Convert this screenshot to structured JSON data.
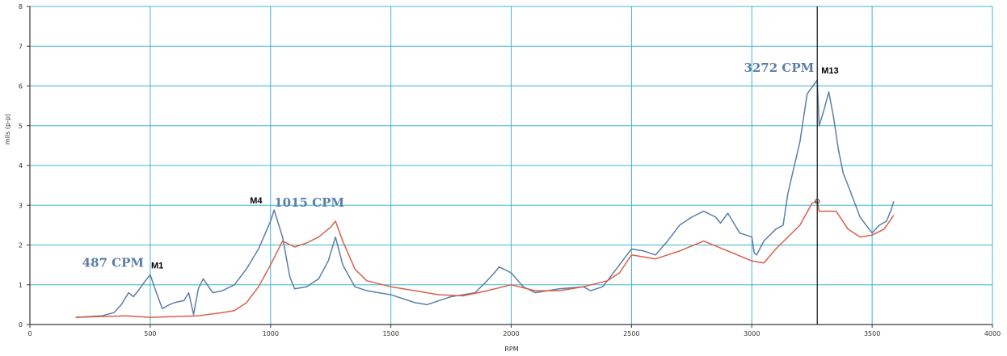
{
  "chart_data": {
    "type": "line",
    "xlabel": "RPM",
    "ylabel": "mils (p-p)",
    "xlim": [
      0,
      4000
    ],
    "ylim": [
      0,
      8
    ],
    "x_ticks": [
      "0",
      "500",
      "1000",
      "1500",
      "2000",
      "2500",
      "3000",
      "3500",
      "4000"
    ],
    "y_ticks": [
      "0",
      "1",
      "2",
      "3",
      "4",
      "5",
      "6",
      "7",
      "8"
    ],
    "grid": true,
    "series": [
      {
        "color": "#5b7ea8",
        "x": [
          190,
          300,
          350,
          380,
          410,
          430,
          450,
          480,
          500,
          520,
          550,
          580,
          600,
          640,
          660,
          680,
          700,
          720,
          760,
          800,
          850,
          900,
          950,
          1000,
          1015,
          1050,
          1080,
          1100,
          1150,
          1200,
          1240,
          1270,
          1300,
          1350,
          1400,
          1500,
          1600,
          1650,
          1700,
          1750,
          1800,
          1850,
          1900,
          1930,
          1950,
          2000,
          2050,
          2100,
          2200,
          2300,
          2330,
          2380,
          2400,
          2450,
          2500,
          2550,
          2600,
          2650,
          2700,
          2750,
          2800,
          2850,
          2870,
          2900,
          2950,
          3000,
          3010,
          3020,
          3050,
          3100,
          3130,
          3150,
          3200,
          3230,
          3260,
          3272,
          3280,
          3300,
          3320,
          3340,
          3360,
          3380,
          3400,
          3450,
          3500,
          3530,
          3560,
          3580,
          3590
        ],
        "y": [
          0.18,
          0.22,
          0.3,
          0.5,
          0.8,
          0.7,
          0.85,
          1.1,
          1.25,
          0.9,
          0.4,
          0.5,
          0.55,
          0.6,
          0.8,
          0.25,
          0.9,
          1.15,
          0.8,
          0.85,
          1.0,
          1.4,
          1.9,
          2.6,
          2.88,
          2.2,
          1.2,
          0.9,
          0.95,
          1.15,
          1.6,
          2.2,
          1.5,
          0.95,
          0.85,
          0.75,
          0.55,
          0.5,
          0.6,
          0.7,
          0.75,
          0.8,
          1.1,
          1.3,
          1.45,
          1.3,
          0.95,
          0.8,
          0.9,
          0.95,
          0.85,
          0.95,
          1.1,
          1.5,
          1.9,
          1.85,
          1.75,
          2.1,
          2.5,
          2.7,
          2.85,
          2.7,
          2.55,
          2.8,
          2.3,
          2.2,
          1.8,
          1.75,
          2.1,
          2.4,
          2.5,
          3.3,
          4.6,
          5.8,
          6.05,
          6.15,
          5.0,
          5.4,
          5.85,
          5.2,
          4.4,
          3.8,
          3.5,
          2.7,
          2.3,
          2.5,
          2.6,
          2.9,
          3.1
        ]
      },
      {
        "color": "#d9604a",
        "x": [
          190,
          300,
          400,
          500,
          600,
          700,
          800,
          850,
          900,
          950,
          1000,
          1050,
          1100,
          1150,
          1200,
          1250,
          1270,
          1300,
          1350,
          1400,
          1500,
          1600,
          1700,
          1800,
          1900,
          2000,
          2100,
          2200,
          2300,
          2400,
          2450,
          2500,
          2600,
          2700,
          2800,
          2900,
          3000,
          3050,
          3100,
          3150,
          3200,
          3250,
          3272,
          3280,
          3300,
          3350,
          3400,
          3450,
          3500,
          3550,
          3590
        ],
        "y": [
          0.18,
          0.2,
          0.22,
          0.18,
          0.2,
          0.22,
          0.3,
          0.35,
          0.55,
          0.95,
          1.5,
          2.1,
          1.95,
          2.05,
          2.2,
          2.45,
          2.6,
          2.1,
          1.4,
          1.1,
          0.95,
          0.85,
          0.75,
          0.72,
          0.85,
          1.0,
          0.85,
          0.85,
          0.95,
          1.1,
          1.3,
          1.75,
          1.65,
          1.85,
          2.1,
          1.85,
          1.6,
          1.55,
          1.9,
          2.2,
          2.5,
          3.05,
          3.1,
          2.85,
          2.85,
          2.85,
          2.4,
          2.2,
          2.25,
          2.4,
          2.75
        ]
      }
    ],
    "annotations": [
      {
        "text": "487 CPM",
        "x": 487,
        "y": 1.25,
        "kind": "peak"
      },
      {
        "text": "M1",
        "x": 487,
        "y": 1.25,
        "kind": "marker"
      },
      {
        "text": "1015 CPM",
        "x": 1015,
        "y": 2.88,
        "kind": "peak"
      },
      {
        "text": "M4",
        "x": 1015,
        "y": 2.88,
        "kind": "marker"
      },
      {
        "text": "3272 CPM",
        "x": 3272,
        "y": 6.15,
        "kind": "peak"
      },
      {
        "text": "M13",
        "x": 3272,
        "y": 6.15,
        "kind": "marker"
      }
    ],
    "cursor": {
      "x": 3272,
      "y": 3.1
    }
  },
  "colors": {
    "grid": "#3fb5cf",
    "axis": "#3a3a3a",
    "cursor": "#222222"
  }
}
